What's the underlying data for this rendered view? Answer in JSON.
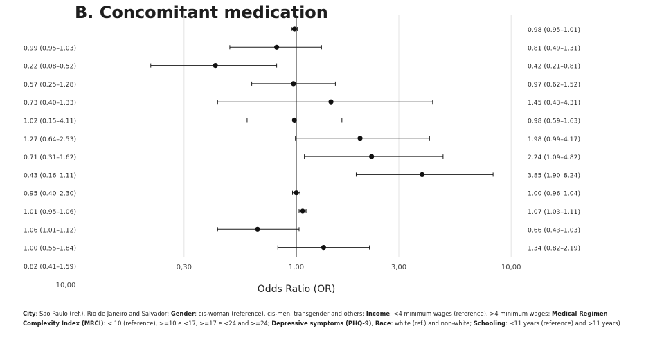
{
  "title": "B. Concomitant medication",
  "chart_data": {
    "type": "forest",
    "title": "B. Concomitant medication",
    "xlabel": "Odds Ratio (OR)",
    "x_scale": "log",
    "x_ticks": [
      "0,30",
      "1,00",
      "3,00",
      "10,00"
    ],
    "x_tick_values": [
      0.3,
      1.0,
      3.0,
      10.0
    ],
    "left_axis_tick_label": "10,00",
    "left_labels": [
      "",
      "0.99 (0.95–1.03)",
      "0.22 (0.08–0.52)",
      "0.57 (0.25–1.28)",
      "0.73 (0.40–1.33)",
      "1.02 (0.15–4.11)",
      "1.27 (0.64–2.53)",
      "0.71 (0.31–1.62)",
      "0.43 (0.16–1.11)",
      "0.95 (0.40–2.30)",
      "1.01 (0.95–1.06)",
      "1.06 (1.01–1.12)",
      "1.00 (0.55–1.84)",
      "0.82 (0.41–1.59)"
    ],
    "right_labels": [
      "0.98 (0.95–1.01)",
      "0.81 (0.49–1.31)",
      "0.42 (0.21–0.81)",
      "0.97 (0.62–1.52)",
      "1.45 (0.43–4.31)",
      "0.98 (0.59–1.63)",
      "1.98 (0.99–4.17)",
      "2.24 (1.09–4.82)",
      "3.85 (1.90–8.24)",
      "1.00 (0.96–1.04)",
      "1.07 (1.03–1.11)",
      "0.66 (0.43–1.03)",
      "1.34 (0.82–2.19)"
    ],
    "points": [
      {
        "or": 0.98,
        "lo": 0.95,
        "hi": 1.01
      },
      {
        "or": 0.81,
        "lo": 0.49,
        "hi": 1.31
      },
      {
        "or": 0.42,
        "lo": 0.21,
        "hi": 0.81
      },
      {
        "or": 0.97,
        "lo": 0.62,
        "hi": 1.52
      },
      {
        "or": 1.45,
        "lo": 0.43,
        "hi": 4.31
      },
      {
        "or": 0.98,
        "lo": 0.59,
        "hi": 1.63
      },
      {
        "or": 1.98,
        "lo": 0.99,
        "hi": 4.17
      },
      {
        "or": 2.24,
        "lo": 1.09,
        "hi": 4.82
      },
      {
        "or": 3.85,
        "lo": 1.9,
        "hi": 8.24
      },
      {
        "or": 1.0,
        "lo": 0.96,
        "hi": 1.04
      },
      {
        "or": 1.07,
        "lo": 1.03,
        "hi": 1.11
      },
      {
        "or": 0.66,
        "lo": 0.43,
        "hi": 1.03
      },
      {
        "or": 1.34,
        "lo": 0.82,
        "hi": 2.19
      }
    ],
    "reference_line": 1.0,
    "grid": true
  },
  "footnote": {
    "parts": [
      {
        "b": true,
        "t": "City"
      },
      {
        "b": false,
        "t": ": São Paulo (ref.), Rio de Janeiro and Salvador; "
      },
      {
        "b": true,
        "t": "Gender"
      },
      {
        "b": false,
        "t": ": cis-woman (reference), cis-men, transgender and others; "
      },
      {
        "b": true,
        "t": "Income"
      },
      {
        "b": false,
        "t": ": <4 minimum wages (reference), >4 minimum wages; "
      },
      {
        "b": true,
        "t": "Medical Regimen Complexity Index (MRCI)"
      },
      {
        "b": false,
        "t": ": < 10 (reference), >=10 e <17, >=17 e <24 and >=24; "
      },
      {
        "b": true,
        "t": "Depressive symptoms (PHQ-9)"
      },
      {
        "b": false,
        "t": ", "
      },
      {
        "b": true,
        "t": "Race"
      },
      {
        "b": false,
        "t": ": white (ref.) and non-white; "
      },
      {
        "b": true,
        "t": "Schooling"
      },
      {
        "b": false,
        "t": ": ≤11 years (reference) and >11 years)"
      }
    ]
  }
}
